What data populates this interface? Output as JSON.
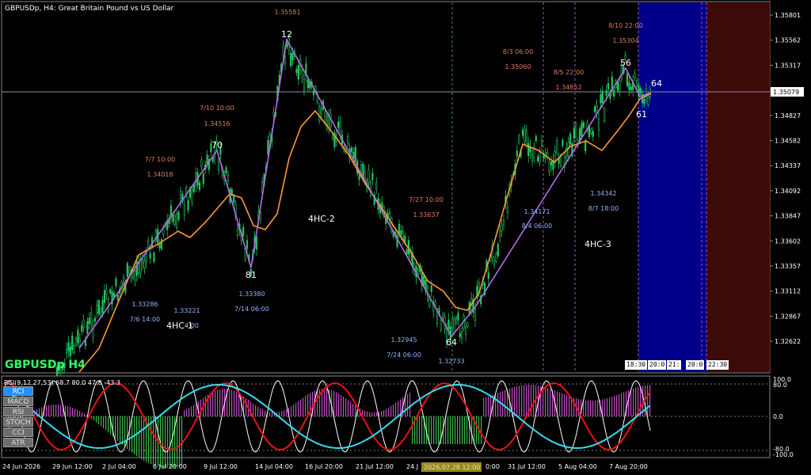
{
  "header": {
    "symbol_info": "GBPUSDp, H4:  Great Britain Pound vs US Dollar"
  },
  "watermark": "GBPUSDp H4",
  "price_axis": {
    "ticks": [
      "1.35801",
      "1.35562",
      "1.35317",
      "1.35079",
      "1.34827",
      "1.34582",
      "1.34337",
      "1.34092",
      "1.33847",
      "1.33602",
      "1.33357",
      "1.33112",
      "1.32867",
      "1.32622"
    ],
    "current_price": "1.35079"
  },
  "rci_axis": {
    "ticks": [
      "100.0",
      "80.0",
      "0.0",
      "-80.0",
      "-100.0"
    ]
  },
  "rci_header": "RCI(9,12,27,53) 68.7 80.0 47.8 -43.3",
  "time_axis": {
    "labels": [
      "24 Jun 2026",
      "29 Jun 12:00",
      "2 Jul 04:00",
      "6 Jul 20:00",
      "9 Jul 12:00",
      "14 Jul 04:00",
      "16 Jul 20:00",
      "21 Jul 12:00",
      "24 J",
      "0:00",
      "31 Jul 12:00",
      "5 Aug 04:00",
      "7 Aug 20:00"
    ],
    "cursor_time": "2026.07.28 12:00"
  },
  "indicator_buttons": [
    "RCI",
    "MACD",
    "RSI",
    "STOCH",
    "CCI",
    "ATR"
  ],
  "time_boxes": [
    "18:30",
    "20:0",
    "21:",
    "20:0",
    "22:30"
  ],
  "zigzag": {
    "points": [
      {
        "label": "70",
        "date": "7/7 10:00",
        "price": "1.34018"
      },
      {
        "label": "81",
        "date": "7/14 06:00",
        "price": "1.33380"
      },
      {
        "label": "12",
        "date": "7/10 10:00",
        "price": "1.34516"
      },
      {
        "label": "64",
        "date": "7/24 06:00",
        "price": "1.32945"
      },
      {
        "label": "56",
        "date": "8/3 06:00",
        "price": "1.35060"
      },
      {
        "label": "61",
        "date": "",
        "price": ""
      },
      {
        "label": "64",
        "date": "",
        "price": ""
      }
    ]
  },
  "annotations": {
    "top_price": "1.35581",
    "a1_date": "7/10 10:00",
    "a1_price": "1.34516",
    "a2_date": "7/7 10:00",
    "a2_price": "1.34018",
    "a3_date": "7/27 10:00",
    "a3_price": "1.33637",
    "a4_date": "8/3 06:00",
    "a4_price": "1.35060",
    "a5_date": "8/5 22:00",
    "a5_price": "1.34852",
    "a6_date": "8/10 22:00",
    "a6_price": "1.35304",
    "b1_price": "1.33286",
    "b1_date": "7/6 14:00",
    "b2_price": "1.33221",
    "b2_date": "4:00",
    "b3_price": "1.33380",
    "b3_date": "7/14 06:00",
    "b4_price": "1.32945",
    "b4_date": "7/24 06:00",
    "b5_price": "1.32733",
    "b6_price": "1.34171",
    "b6_date": "8/4 06:00",
    "b7_price": "1.34342",
    "b7_date": "8/7 18:00",
    "hc1": "4HC-1",
    "hc2": "4HC-2",
    "hc3": "4HC-3"
  },
  "colors": {
    "candle": "#22c55e",
    "ma": "#ff9933",
    "zigzag": "#b46be8",
    "future_blue": "#00008b",
    "future_red": "#3d0a0a",
    "rci_white": "#ffffff",
    "rci_red": "#ee1111",
    "rci_cyan": "#33ddee",
    "hist_green": "#3fb950",
    "hist_magenta": "#c04fc0",
    "watermark": "#33ff66"
  }
}
